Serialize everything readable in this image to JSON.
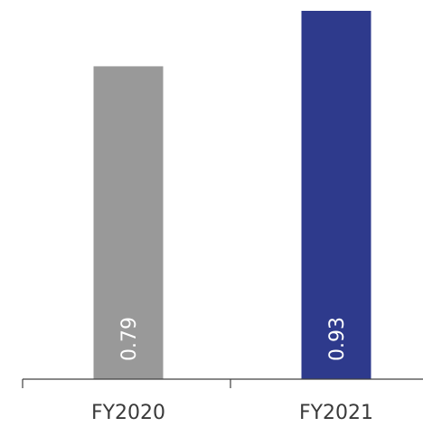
{
  "chart_data": {
    "type": "bar",
    "categories": [
      "FY2020",
      "FY2021"
    ],
    "values": [
      0.79,
      0.93
    ],
    "data_labels": [
      "0.79",
      "0.93"
    ],
    "colors": [
      "#999999",
      "#2E3A8C"
    ],
    "title": "",
    "xlabel": "",
    "ylabel": "",
    "ylim": [
      0,
      0.93
    ],
    "grid": false,
    "legend": "none",
    "data_label_orientation": "vertical"
  }
}
